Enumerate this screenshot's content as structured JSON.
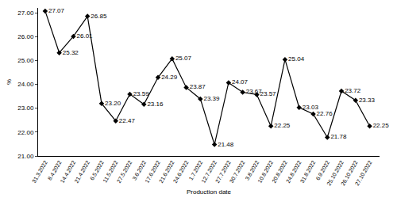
{
  "chart_data": {
    "type": "line",
    "x_label": "Production date",
    "y_label": "%",
    "categories": [
      "31.3.2022",
      "8.4.2022",
      "14.4.2022",
      "21.4.2022",
      "6.5.2022",
      "11.5.2022",
      "27.5.2022",
      "3.6.2022",
      "17.6.2022",
      "21.6.2022",
      "24.6.2022",
      "1.7.2022",
      "12.7.2022",
      "27.7.2022",
      "30.7.2022",
      "3.8.2022",
      "10.8.2022",
      "20.8.2022",
      "24.8.2022",
      "31.8.2022",
      "6.9.2022",
      "25.10.2022",
      "26.10.2022",
      "27.10.2022"
    ],
    "values": [
      27.07,
      25.32,
      26.01,
      26.85,
      23.2,
      22.47,
      23.59,
      23.16,
      24.29,
      25.07,
      23.87,
      23.39,
      21.48,
      24.07,
      23.67,
      23.57,
      22.25,
      25.04,
      23.03,
      22.76,
      21.78,
      23.72,
      23.33,
      22.25
    ],
    "value_labels": [
      "27.07",
      "25.32",
      "26.01",
      "26.85",
      "23.20",
      "22.47",
      "23.59",
      "23.16",
      "24.29",
      "25.07",
      "23.87",
      "23.39",
      "21.48",
      "24.07",
      "23.67",
      "23.57",
      "22.25",
      "25.04",
      "23.03",
      "22.76",
      "21.78",
      "23.72",
      "23.33",
      "22.25"
    ],
    "color": "#000000",
    "marker": "diamond",
    "line_style": "solid",
    "data_labels": true,
    "grid": false,
    "ylim": [
      21,
      27.2
    ],
    "yticks": [
      {
        "value": 21,
        "label": "21.00"
      },
      {
        "value": 22,
        "label": "22.00"
      },
      {
        "value": 23,
        "label": "23.00"
      },
      {
        "value": 24,
        "label": "24.00"
      },
      {
        "value": 25,
        "label": "25.00"
      },
      {
        "value": 26,
        "label": "26.00"
      },
      {
        "value": 27,
        "label": "27.00"
      }
    ]
  }
}
